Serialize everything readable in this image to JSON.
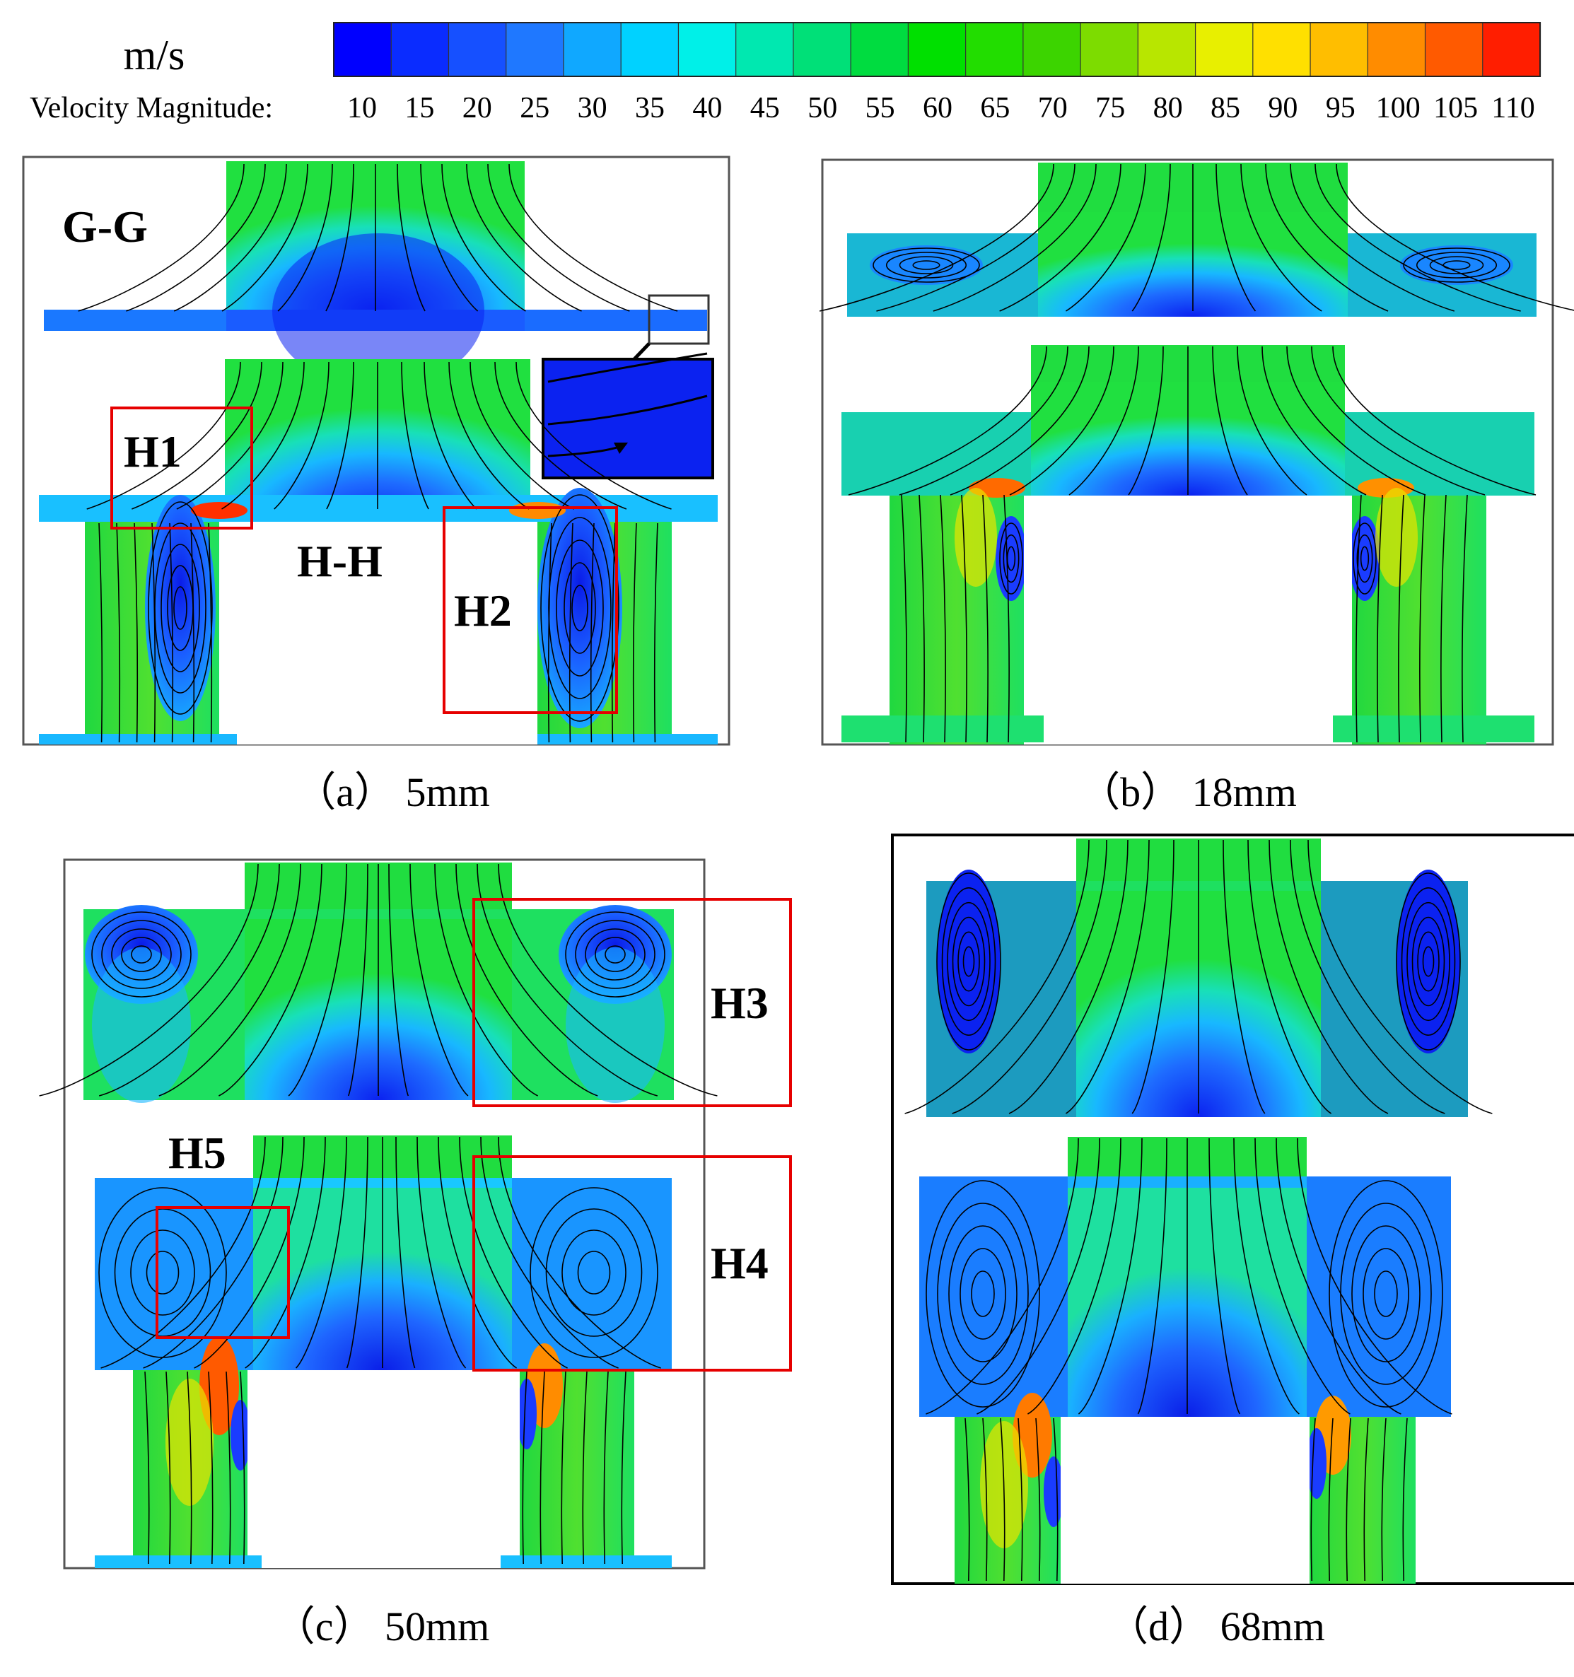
{
  "colorbar": {
    "unit": "m/s",
    "title": "Velocity Magnitude:",
    "ticks": [
      "10",
      "15",
      "20",
      "25",
      "30",
      "35",
      "40",
      "45",
      "50",
      "55",
      "60",
      "65",
      "70",
      "75",
      "80",
      "85",
      "90",
      "95",
      "100",
      "105",
      "110"
    ],
    "colors": [
      "#0000ff",
      "#0a2cff",
      "#1650ff",
      "#1f78ff",
      "#10a8ff",
      "#00d2ff",
      "#00f0e8",
      "#00e8b0",
      "#00e078",
      "#00dc40",
      "#00e000",
      "#22dd00",
      "#3cd400",
      "#7ddc00",
      "#b8e600",
      "#e8ef00",
      "#ffe000",
      "#ffbe00",
      "#ff8c00",
      "#ff5a00",
      "#ff1e00"
    ]
  },
  "palette": {
    "deep_blue": "#0b2cf0",
    "blue": "#1f6cff",
    "light_blue": "#17b7ff",
    "cyan": "#19d8e6",
    "green": "#1ee33a",
    "yellow": "#f2ea00",
    "orange": "#ff9a00",
    "red": "#ff2a00",
    "frame": "#555555",
    "highlight": "#e60000"
  },
  "panels": {
    "a": {
      "caption": "（a） 5mm",
      "labels": {
        "gg": "G-G",
        "hh": "H-H",
        "h1": "H1",
        "h2": "H2"
      }
    },
    "b": {
      "caption": "（b） 18mm"
    },
    "c": {
      "caption": "（c） 50mm",
      "labels": {
        "h3": "H3",
        "h4": "H4",
        "h5": "H5"
      }
    },
    "d": {
      "caption": "（d） 68mm"
    }
  }
}
